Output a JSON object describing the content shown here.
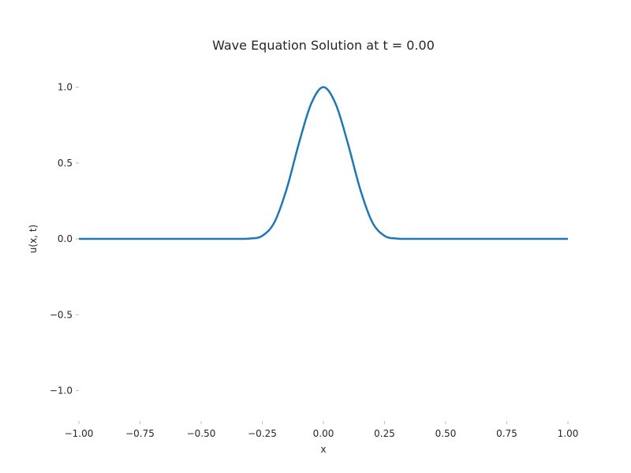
{
  "chart_data": {
    "type": "line",
    "title": "Wave Equation Solution at t = 0.00",
    "xlabel": "x",
    "ylabel": "u(x, t)",
    "xlim": [
      -1.0,
      1.0
    ],
    "ylim": [
      -1.2,
      1.2
    ],
    "x_ticks": [
      -1.0,
      -0.75,
      -0.5,
      -0.25,
      0.0,
      0.25,
      0.5,
      0.75,
      1.0
    ],
    "x_tick_labels": [
      "−1.00",
      "−0.75",
      "−0.50",
      "−0.25",
      "0.00",
      "0.25",
      "0.50",
      "0.75",
      "1.00"
    ],
    "y_ticks": [
      -1.0,
      -0.5,
      0.0,
      0.5,
      1.0
    ],
    "y_tick_labels": [
      "−1.0",
      "−0.5",
      "0.0",
      "0.5",
      "1.0"
    ],
    "grid": false,
    "series": [
      {
        "color": "#1f77b4",
        "x": [
          -1.0,
          -0.5,
          -0.4,
          -0.35,
          -0.3,
          -0.25,
          -0.2,
          -0.15,
          -0.1,
          -0.05,
          0.0,
          0.05,
          0.1,
          0.15,
          0.2,
          0.25,
          0.3,
          0.35,
          0.4,
          0.5,
          1.0
        ],
        "y": [
          0.0,
          0.0,
          0.0,
          0.0,
          0.002,
          0.02,
          0.11,
          0.33,
          0.63,
          0.89,
          1.0,
          0.89,
          0.63,
          0.33,
          0.11,
          0.02,
          0.002,
          0.0,
          0.0,
          0.0,
          0.0
        ]
      }
    ]
  }
}
